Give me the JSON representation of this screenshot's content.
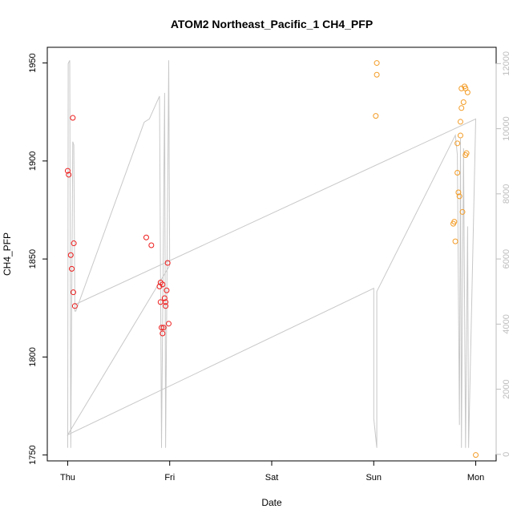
{
  "chart_data": {
    "type": "scatter",
    "title": "ATOM2 Northeast_Pacific_1 CH4_PFP",
    "xlabel": "Date",
    "ylabel": "CH4_PFP",
    "x_ticks": [
      "Thu",
      "Fri",
      "Sat",
      "Sun",
      "Mon"
    ],
    "x_range_days": [
      -0.2,
      4.2
    ],
    "y_ticks": [
      1750,
      1800,
      1850,
      1900,
      1950
    ],
    "ylim": [
      1747,
      1958
    ],
    "y2_ticks": [
      0,
      2000,
      4000,
      6000,
      8000,
      10000,
      12000
    ],
    "y2lim": [
      -200,
      12500
    ],
    "grid": false,
    "colors": {
      "points_first": "#ee1c1c",
      "points_second": "#f39c26",
      "altitude_line": "#c8c8c8",
      "frame": "#000000"
    },
    "series": [
      {
        "color": "#ee1c1c",
        "points": [
          {
            "x": 0.0,
            "y": 1895
          },
          {
            "x": 0.01,
            "y": 1893
          },
          {
            "x": 0.05,
            "y": 1922
          },
          {
            "x": 0.03,
            "y": 1852
          },
          {
            "x": 0.04,
            "y": 1845
          },
          {
            "x": 0.06,
            "y": 1858
          },
          {
            "x": 0.055,
            "y": 1833
          },
          {
            "x": 0.07,
            "y": 1826
          },
          {
            "x": 0.77,
            "y": 1861
          },
          {
            "x": 0.82,
            "y": 1857
          },
          {
            "x": 0.9,
            "y": 1836
          },
          {
            "x": 0.91,
            "y": 1838
          },
          {
            "x": 0.93,
            "y": 1837
          },
          {
            "x": 0.91,
            "y": 1828
          },
          {
            "x": 0.92,
            "y": 1815
          },
          {
            "x": 0.93,
            "y": 1812
          },
          {
            "x": 0.94,
            "y": 1815
          },
          {
            "x": 0.95,
            "y": 1830
          },
          {
            "x": 0.96,
            "y": 1826
          },
          {
            "x": 0.96,
            "y": 1828
          },
          {
            "x": 0.97,
            "y": 1834
          },
          {
            "x": 0.98,
            "y": 1848
          },
          {
            "x": 0.99,
            "y": 1817
          }
        ]
      },
      {
        "color": "#f39c26",
        "points": [
          {
            "x": 3.03,
            "y": 1950
          },
          {
            "x": 3.03,
            "y": 1944
          },
          {
            "x": 3.02,
            "y": 1923
          },
          {
            "x": 3.78,
            "y": 1868
          },
          {
            "x": 3.79,
            "y": 1869
          },
          {
            "x": 3.8,
            "y": 1859
          },
          {
            "x": 3.82,
            "y": 1909
          },
          {
            "x": 3.82,
            "y": 1894
          },
          {
            "x": 3.83,
            "y": 1884
          },
          {
            "x": 3.84,
            "y": 1882
          },
          {
            "x": 3.85,
            "y": 1920
          },
          {
            "x": 3.85,
            "y": 1913
          },
          {
            "x": 3.86,
            "y": 1927
          },
          {
            "x": 3.86,
            "y": 1937
          },
          {
            "x": 3.87,
            "y": 1874
          },
          {
            "x": 3.88,
            "y": 1930
          },
          {
            "x": 3.89,
            "y": 1938
          },
          {
            "x": 3.9,
            "y": 1937
          },
          {
            "x": 3.9,
            "y": 1903
          },
          {
            "x": 3.91,
            "y": 1904
          },
          {
            "x": 3.92,
            "y": 1935
          },
          {
            "x": 4.0,
            "y": 1750
          }
        ]
      }
    ],
    "altitude_line": {
      "color": "#c8c8c8",
      "points": [
        {
          "x": 0.0,
          "y2": 200
        },
        {
          "x": 0.005,
          "y2": 12000
        },
        {
          "x": 0.02,
          "y2": 12100
        },
        {
          "x": 0.03,
          "y2": 200
        },
        {
          "x": 0.05,
          "y2": 9600
        },
        {
          "x": 0.06,
          "y2": 9500
        },
        {
          "x": 0.07,
          "y2": 4400
        },
        {
          "x": 0.08,
          "y2": 4400
        },
        {
          "x": 0.75,
          "y2": 10200
        },
        {
          "x": 0.8,
          "y2": 10300
        },
        {
          "x": 0.9,
          "y2": 11000
        },
        {
          "x": 0.92,
          "y2": 200
        },
        {
          "x": 0.95,
          "y2": 11100
        },
        {
          "x": 0.96,
          "y2": 200
        },
        {
          "x": 0.99,
          "y2": 12100
        },
        {
          "x": 1.0,
          "y2": 5800
        },
        {
          "x": 0.0,
          "y2": 600
        },
        {
          "x": 3.0,
          "y2": 5100
        },
        {
          "x": 3.0,
          "y2": 1100
        },
        {
          "x": 3.03,
          "y2": 200
        },
        {
          "x": 3.03,
          "y2": 5000
        },
        {
          "x": 3.8,
          "y2": 9800
        },
        {
          "x": 3.82,
          "y2": 9200
        },
        {
          "x": 3.84,
          "y2": 900
        },
        {
          "x": 3.85,
          "y2": 9700
        },
        {
          "x": 3.86,
          "y2": 200
        },
        {
          "x": 3.88,
          "y2": 9400
        },
        {
          "x": 3.9,
          "y2": 200
        },
        {
          "x": 3.92,
          "y2": 7000
        },
        {
          "x": 3.93,
          "y2": 200
        },
        {
          "x": 4.0,
          "y2": 10300
        },
        {
          "x": 0.07,
          "y2": 4600
        }
      ]
    }
  }
}
